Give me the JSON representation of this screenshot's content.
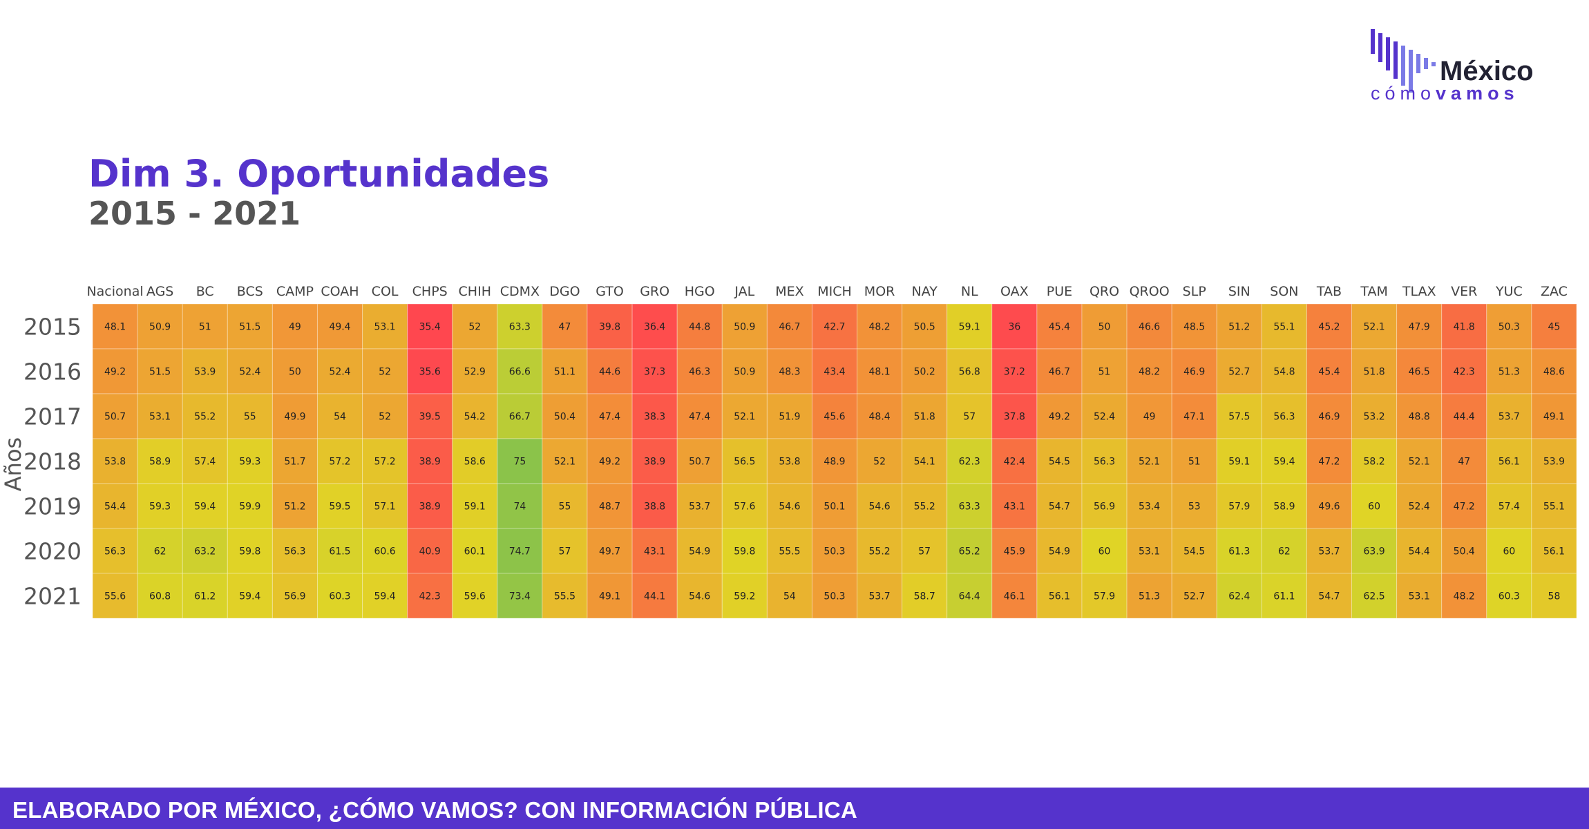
{
  "brand": {
    "line1": "México",
    "line2_light": "cómo",
    "line2_bold": "vamos",
    "color_primary": "#5533cc",
    "color_bars": "#8080e0"
  },
  "title": "Dim 3. Oportunidades",
  "subtitle": "2015 - 2021",
  "footer": "ELABORADO POR MÉXICO, ¿CÓMO VAMOS? CON INFORMACIÓN PÚBLICA",
  "chart_data": {
    "type": "heatmap",
    "ylabel": "Años",
    "x": [
      "Nacional",
      "AGS",
      "BC",
      "BCS",
      "CAMP",
      "COAH",
      "COL",
      "CHPS",
      "CHIH",
      "CDMX",
      "DGO",
      "GTO",
      "GRO",
      "HGO",
      "JAL",
      "MEX",
      "MICH",
      "MOR",
      "NAY",
      "NL",
      "OAX",
      "PUE",
      "QRO",
      "QROO",
      "SLP",
      "SIN",
      "SON",
      "TAB",
      "TAM",
      "TLAX",
      "VER",
      "YUC",
      "ZAC"
    ],
    "y": [
      "2015",
      "2016",
      "2017",
      "2018",
      "2019",
      "2020",
      "2021"
    ],
    "values": [
      [
        48.1,
        50.9,
        51,
        51.5,
        49,
        49.4,
        53.1,
        35.4,
        52,
        63.3,
        47,
        39.8,
        36.4,
        44.8,
        50.9,
        46.7,
        42.7,
        48.2,
        50.5,
        59.1,
        36,
        45.4,
        50,
        46.6,
        48.5,
        51.2,
        55.1,
        45.2,
        52.1,
        47.9,
        41.8,
        50.3,
        45
      ],
      [
        49.2,
        51.5,
        53.9,
        52.4,
        50,
        52.4,
        52,
        35.6,
        52.9,
        66.6,
        51.1,
        44.6,
        37.3,
        46.3,
        50.9,
        48.3,
        43.4,
        48.1,
        50.2,
        56.8,
        37.2,
        46.7,
        51,
        48.2,
        46.9,
        52.7,
        54.8,
        45.4,
        51.8,
        46.5,
        42.3,
        51.3,
        48.6
      ],
      [
        50.7,
        53.1,
        55.2,
        55,
        49.9,
        54,
        52,
        39.5,
        54.2,
        66.7,
        50.4,
        47.4,
        38.3,
        47.4,
        52.1,
        51.9,
        45.6,
        48.4,
        51.8,
        57,
        37.8,
        49.2,
        52.4,
        49,
        47.1,
        57.5,
        56.3,
        46.9,
        53.2,
        48.8,
        44.4,
        53.7,
        49.1
      ],
      [
        53.8,
        58.9,
        57.4,
        59.3,
        51.7,
        57.2,
        57.2,
        38.9,
        58.6,
        75,
        52.1,
        49.2,
        38.9,
        50.7,
        56.5,
        53.8,
        48.9,
        52,
        54.1,
        62.3,
        42.4,
        54.5,
        56.3,
        52.1,
        51,
        59.1,
        59.4,
        47.2,
        58.2,
        52.1,
        47,
        56.1,
        53.9
      ],
      [
        54.4,
        59.3,
        59.4,
        59.9,
        51.2,
        59.5,
        57.1,
        38.9,
        59.1,
        74,
        55,
        48.7,
        38.8,
        53.7,
        57.6,
        54.6,
        50.1,
        54.6,
        55.2,
        63.3,
        43.1,
        54.7,
        56.9,
        53.4,
        53,
        57.9,
        58.9,
        49.6,
        60,
        52.4,
        47.2,
        57.4,
        55.1
      ],
      [
        56.3,
        62,
        63.2,
        59.8,
        56.3,
        61.5,
        60.6,
        40.9,
        60.1,
        74.7,
        57,
        49.7,
        43.1,
        54.9,
        59.8,
        55.5,
        50.3,
        55.2,
        57,
        65.2,
        45.9,
        54.9,
        60,
        53.1,
        54.5,
        61.3,
        62,
        53.7,
        63.9,
        54.4,
        50.4,
        60,
        56.1
      ],
      [
        55.6,
        60.8,
        61.2,
        59.4,
        56.9,
        60.3,
        59.4,
        42.3,
        59.6,
        73.4,
        55.5,
        49.1,
        44.1,
        54.6,
        59.2,
        54,
        50.3,
        53.7,
        58.7,
        64.4,
        46.1,
        56.1,
        57.9,
        51.3,
        52.7,
        62.4,
        61.1,
        54.7,
        62.5,
        53.1,
        48.2,
        60.3,
        58
      ]
    ],
    "color_scale": {
      "low": "#ff4550",
      "mid": "#f29a35",
      "midhigh": "#e0d426",
      "high": "#8bc34a"
    },
    "grid": false,
    "legend": "none"
  }
}
